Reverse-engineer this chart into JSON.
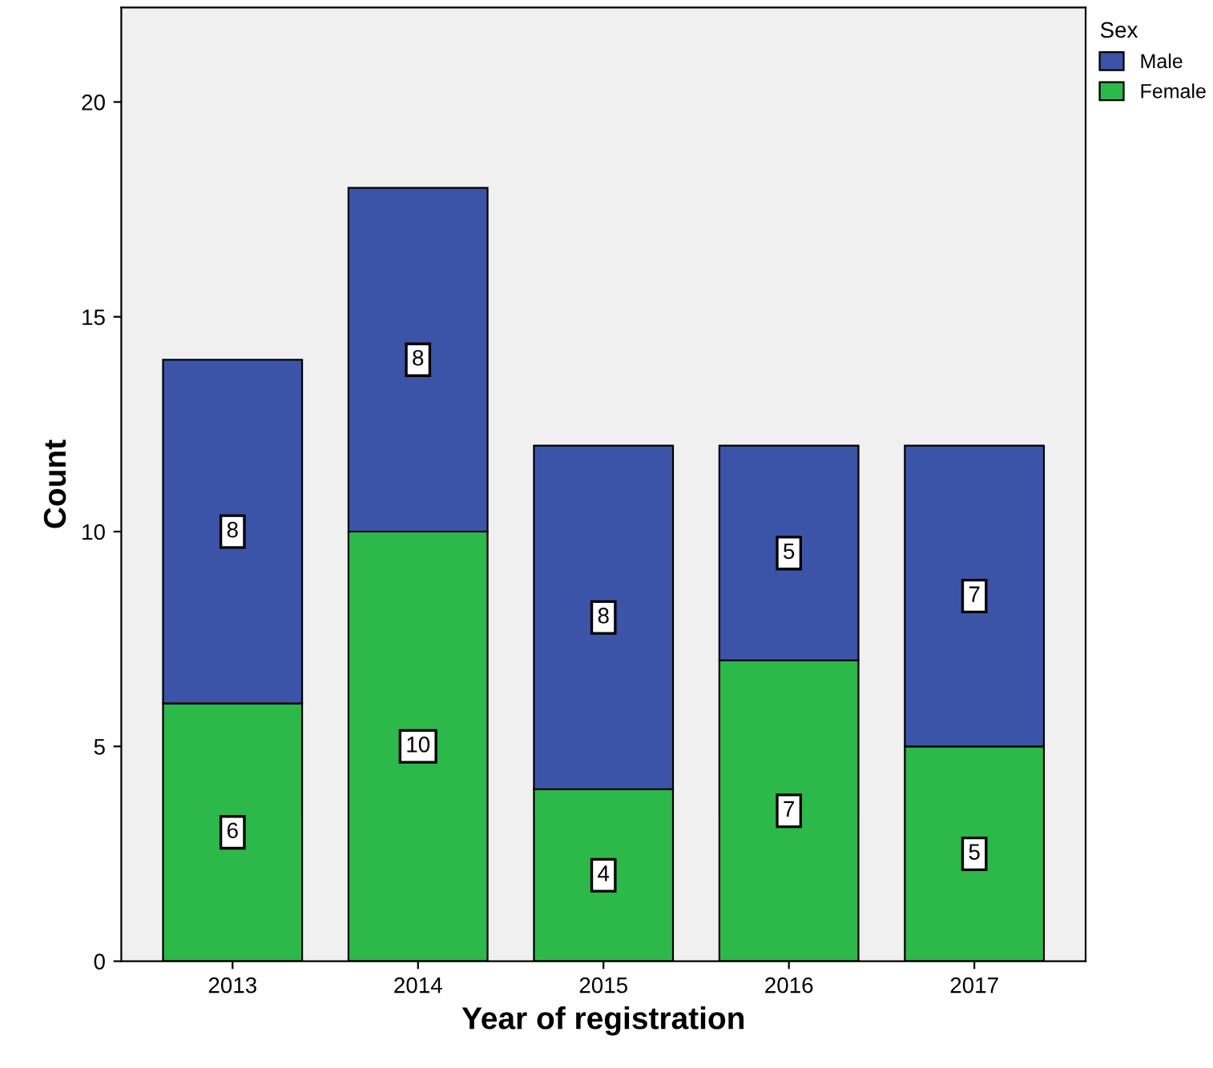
{
  "chart_data": {
    "type": "bar",
    "stacked": true,
    "xlabel": "Year of registration",
    "ylabel": "Count",
    "legend_title": "Sex",
    "legend": "top right",
    "categories": [
      "2013",
      "2014",
      "2015",
      "2016",
      "2017"
    ],
    "series": [
      {
        "name": "Female",
        "color": "#2db84a",
        "values": [
          6,
          10,
          4,
          7,
          5
        ]
      },
      {
        "name": "Male",
        "color": "#3c54a8",
        "values": [
          8,
          8,
          8,
          5,
          7
        ]
      }
    ],
    "ylim": [
      0,
      22.2
    ],
    "yticks": [
      0,
      5,
      10,
      15,
      20
    ],
    "data_labels": true,
    "grid": false
  }
}
